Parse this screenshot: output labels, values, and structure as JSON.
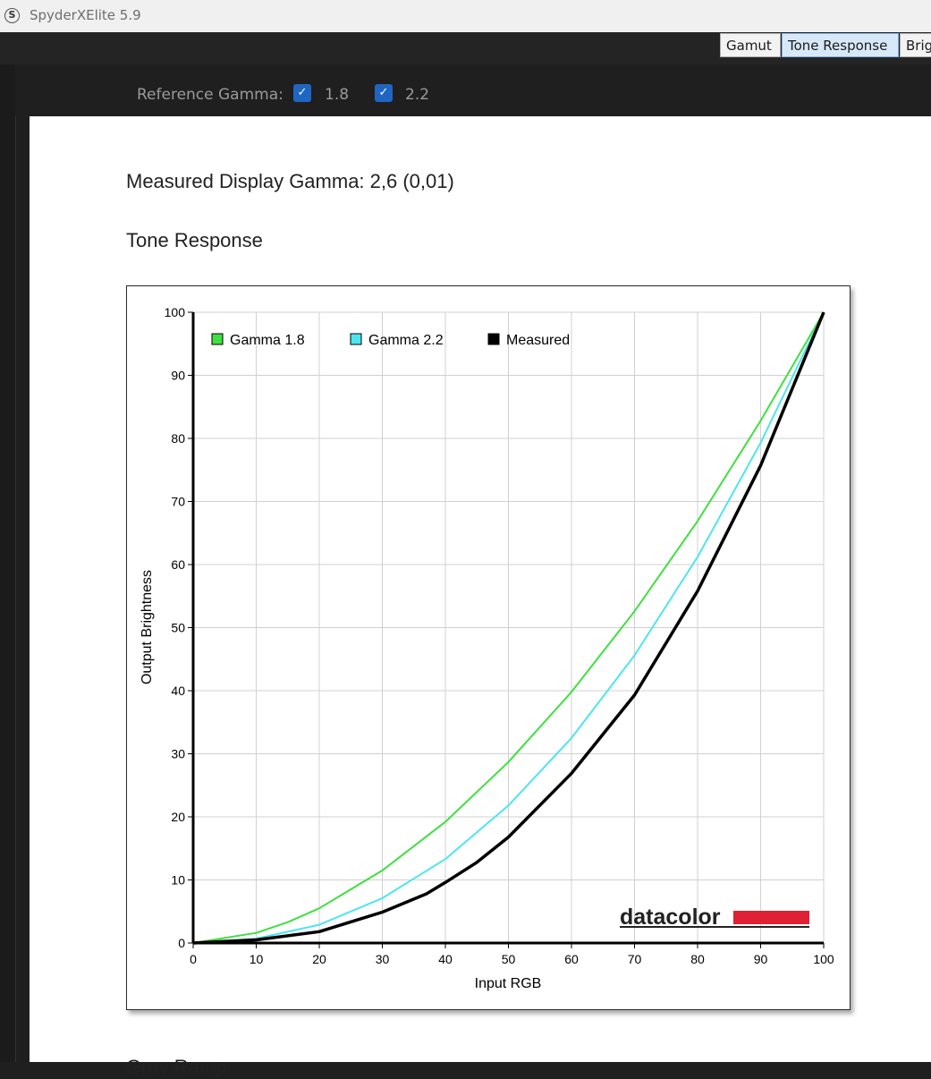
{
  "window": {
    "title": "SpyderXElite 5.9",
    "icon": "spyder-s-icon",
    "icon_glyph": "S"
  },
  "tabs": [
    {
      "label": "Gamut",
      "active": false
    },
    {
      "label": "Tone Response",
      "active": true
    },
    {
      "label": "Brig",
      "active": false
    }
  ],
  "reference": {
    "label": "Reference Gamma:",
    "options": [
      {
        "label": "1.8",
        "checked": true
      },
      {
        "label": "2.2",
        "checked": true
      }
    ]
  },
  "report": {
    "measured_gamma": "Measured Display Gamma: 2,6 (0,01)",
    "section_title": "Tone Response"
  },
  "chart_data": {
    "type": "line",
    "xlabel": "Input RGB",
    "ylabel": "Output Brightness",
    "xlim": [
      0,
      100
    ],
    "ylim": [
      0,
      100
    ],
    "xticks": [
      0,
      10,
      20,
      30,
      40,
      50,
      60,
      70,
      80,
      90,
      100
    ],
    "yticks": [
      0,
      10,
      20,
      30,
      40,
      50,
      60,
      70,
      80,
      90,
      100
    ],
    "grid": true,
    "legend_position": "top-left",
    "series": [
      {
        "name": "Gamma 1.8",
        "color": "#3fe03f",
        "x": [
          0,
          10,
          15,
          20,
          30,
          40,
          50,
          60,
          70,
          80,
          90,
          100
        ],
        "y": [
          0,
          1.6,
          3.3,
          5.5,
          11.5,
          19.2,
          28.7,
          39.8,
          52.6,
          66.9,
          82.8,
          100
        ]
      },
      {
        "name": "Gamma 2.2",
        "color": "#4de6ee",
        "x": [
          0,
          10,
          20,
          30,
          40,
          50,
          60,
          70,
          80,
          90,
          100
        ],
        "y": [
          0,
          0.7,
          2.9,
          7.1,
          13.3,
          21.8,
          32.5,
          45.6,
          61.2,
          79.3,
          100
        ]
      },
      {
        "name": "Measured",
        "color": "#000000",
        "x": [
          0,
          10,
          20,
          30,
          37,
          40,
          45,
          50,
          60,
          70,
          80,
          90,
          100
        ],
        "y": [
          0,
          0.5,
          1.8,
          4.9,
          7.8,
          9.6,
          12.8,
          16.8,
          26.9,
          39.3,
          55.8,
          75.7,
          100
        ]
      }
    ]
  },
  "branding": {
    "logo_text": "datacolor",
    "logo_bar_color": "#e02033"
  },
  "next_section_partial": "Gray Ramp"
}
